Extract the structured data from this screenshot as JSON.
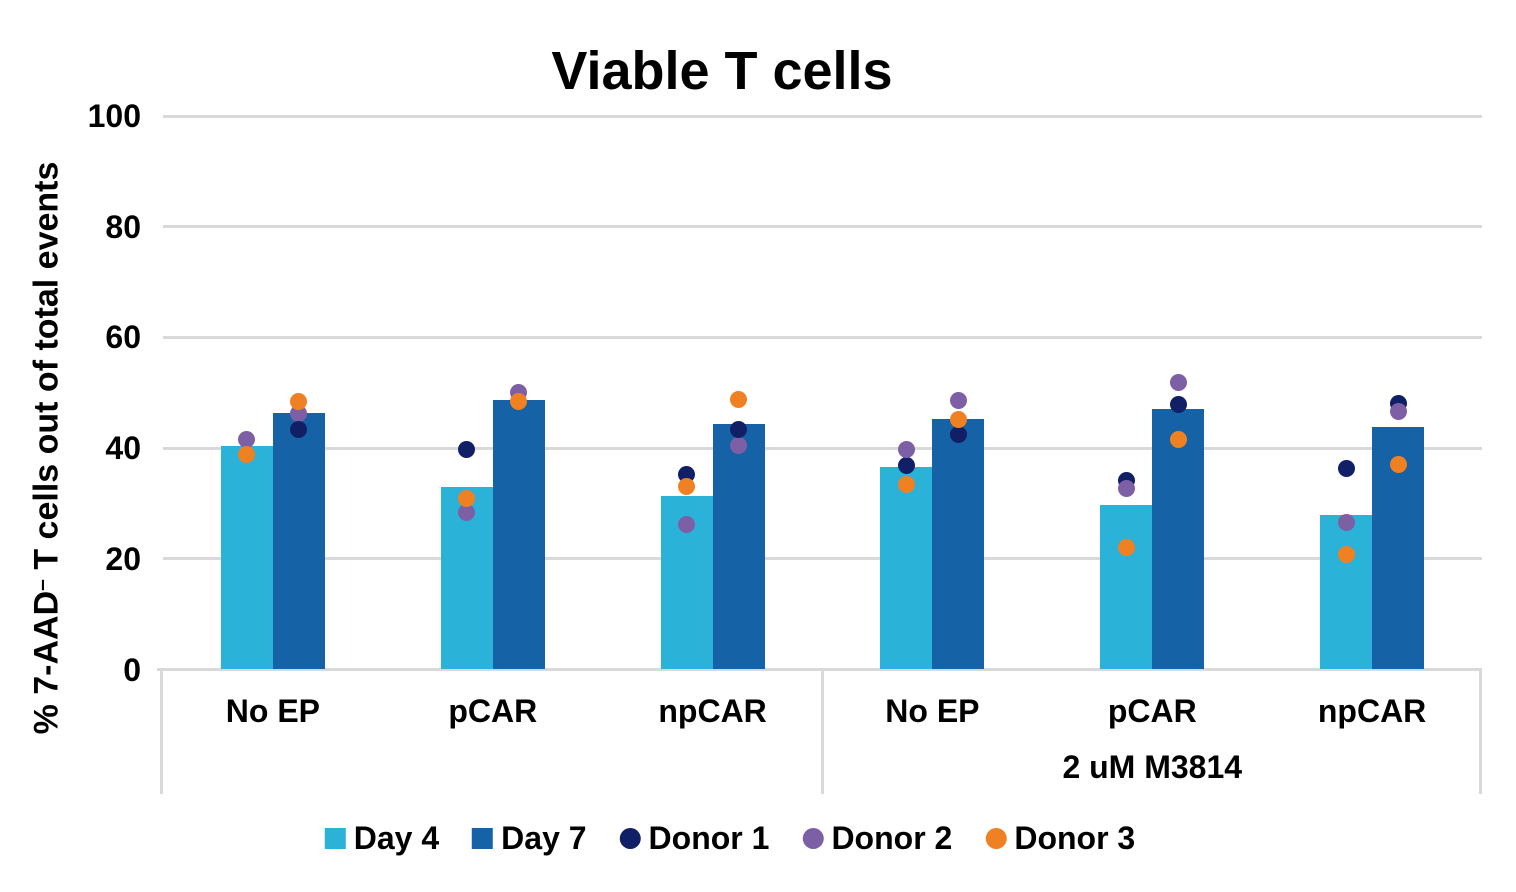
{
  "chart_data": {
    "type": "bar",
    "title": "Viable T cells",
    "ylabel": "% 7-AAD⁻ T cells out of total events",
    "ylabel_parts": {
      "pre": "% 7-AAD",
      "sup": "–",
      "post": " T cells out of total events"
    },
    "ylim": [
      0,
      100
    ],
    "yticks": [
      0,
      20,
      40,
      60,
      80,
      100
    ],
    "grid": "horizontal",
    "legend_position": "bottom",
    "categories": [
      "No EP",
      "pCAR",
      "npCAR",
      "No EP",
      "pCAR",
      "npCAR"
    ],
    "group2_label": "2 uM M3814",
    "group2_span": [
      3,
      5
    ],
    "bar_series": [
      {
        "name": "Day 4",
        "color": "#2AB2D8",
        "values": [
          40.3,
          33.0,
          31.3,
          36.5,
          29.7,
          28.0
        ]
      },
      {
        "name": "Day 7",
        "color": "#1562A7",
        "values": [
          46.4,
          48.6,
          44.4,
          45.3,
          47.0,
          43.8
        ]
      }
    ],
    "donor_colors": {
      "Donor 1": "#101F66",
      "Donor 2": "#7D5FA6",
      "Donor 3": "#F08122"
    },
    "dots": [
      {
        "category": "No EP",
        "day4": [
          {
            "donor": "Donor 2",
            "value": 41.6
          },
          {
            "donor": "Donor 3",
            "value": 38.8
          }
        ],
        "day7": [
          {
            "donor": "Donor 2",
            "value": 46.2
          },
          {
            "donor": "Donor 1",
            "value": 43.4
          },
          {
            "donor": "Donor 3",
            "value": 48.5
          }
        ]
      },
      {
        "category": "pCAR",
        "day4": [
          {
            "donor": "Donor 1",
            "value": 39.8
          },
          {
            "donor": "Donor 2",
            "value": 28.3
          },
          {
            "donor": "Donor 3",
            "value": 30.9
          }
        ],
        "day7": [
          {
            "donor": "Donor 2",
            "value": 50.0
          },
          {
            "donor": "Donor 3",
            "value": 48.5
          }
        ]
      },
      {
        "category": "npCAR",
        "day4": [
          {
            "donor": "Donor 1",
            "value": 35.3
          },
          {
            "donor": "Donor 3",
            "value": 33.0
          },
          {
            "donor": "Donor 2",
            "value": 26.2
          }
        ],
        "day7": [
          {
            "donor": "Donor 2",
            "value": 40.4
          },
          {
            "donor": "Donor 1",
            "value": 43.4
          },
          {
            "donor": "Donor 3",
            "value": 48.8
          }
        ]
      },
      {
        "category": "No EP",
        "day4": [
          {
            "donor": "Donor 1",
            "value": 36.8
          },
          {
            "donor": "Donor 2",
            "value": 39.7
          },
          {
            "donor": "Donor 3",
            "value": 33.5
          }
        ],
        "day7": [
          {
            "donor": "Donor 1",
            "value": 42.4
          },
          {
            "donor": "Donor 3",
            "value": 45.1
          },
          {
            "donor": "Donor 2",
            "value": 48.6
          }
        ]
      },
      {
        "category": "pCAR",
        "day4": [
          {
            "donor": "Donor 1",
            "value": 34.2
          },
          {
            "donor": "Donor 2",
            "value": 32.7
          },
          {
            "donor": "Donor 3",
            "value": 22.0
          }
        ],
        "day7": [
          {
            "donor": "Donor 3",
            "value": 41.5
          },
          {
            "donor": "Donor 1",
            "value": 47.9
          },
          {
            "donor": "Donor 2",
            "value": 51.9
          }
        ]
      },
      {
        "category": "npCAR",
        "day4": [
          {
            "donor": "Donor 1",
            "value": 36.3
          },
          {
            "donor": "Donor 2",
            "value": 26.5
          },
          {
            "donor": "Donor 3",
            "value": 20.8
          }
        ],
        "day7": [
          {
            "donor": "Donor 1",
            "value": 48.1
          },
          {
            "donor": "Donor 2",
            "value": 46.6
          },
          {
            "donor": "Donor 3",
            "value": 37.1
          }
        ]
      }
    ],
    "legend": [
      {
        "label": "Day 4",
        "shape": "square",
        "color": "#2AB2D8"
      },
      {
        "label": "Day 7",
        "shape": "square",
        "color": "#1562A7"
      },
      {
        "label": "Donor 1",
        "shape": "circle",
        "color": "#101F66"
      },
      {
        "label": "Donor 2",
        "shape": "circle",
        "color": "#7D5FA6"
      },
      {
        "label": "Donor 3",
        "shape": "circle",
        "color": "#F08122"
      }
    ],
    "colors": {
      "gridline": "#D9D9D9",
      "text": "#000000",
      "background": "#FFFFFF"
    }
  }
}
